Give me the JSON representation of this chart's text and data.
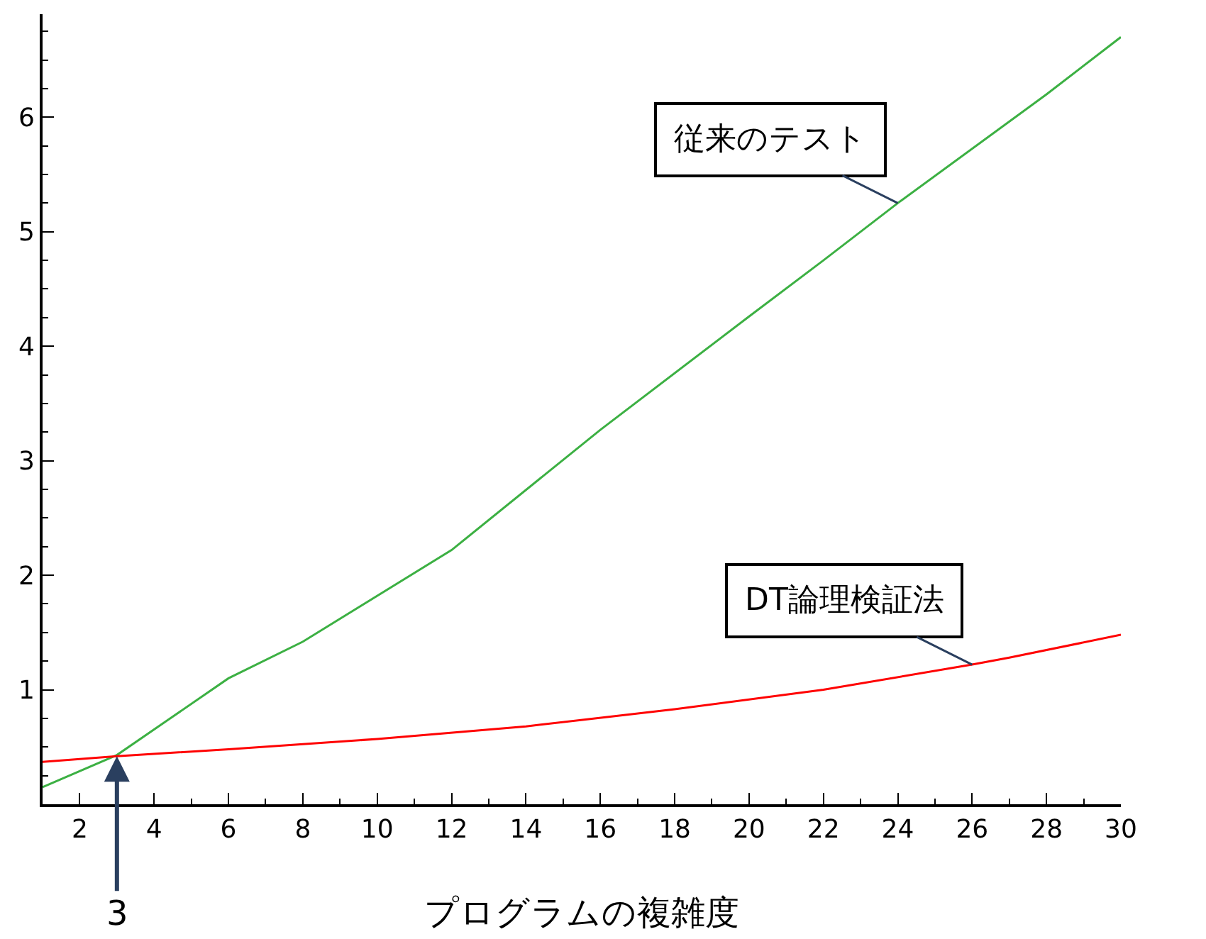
{
  "chart_data": {
    "type": "line",
    "xlabel": "プログラムの複雑度",
    "series": [
      {
        "name": "従来のテスト",
        "color": "#3cb043",
        "x": [
          1,
          3,
          6,
          8,
          12,
          16,
          20,
          22,
          24,
          28,
          30
        ],
        "values": [
          0.15,
          0.43,
          1.1,
          1.42,
          2.22,
          3.27,
          4.26,
          4.75,
          5.25,
          6.2,
          6.7
        ]
      },
      {
        "name": "DT論理検証法",
        "color": "#ff0000",
        "x": [
          1,
          3,
          6,
          10,
          14,
          18,
          22,
          26,
          27,
          30
        ],
        "values": [
          0.37,
          0.42,
          0.48,
          0.57,
          0.68,
          0.83,
          1.0,
          1.22,
          1.28,
          1.48
        ]
      }
    ],
    "annotations": [
      {
        "text": "3",
        "x": 3,
        "y": 0.42
      }
    ],
    "xlim": [
      1,
      30
    ],
    "xticks": [
      2,
      4,
      6,
      8,
      10,
      12,
      14,
      16,
      18,
      20,
      22,
      24,
      26,
      28,
      30
    ],
    "ylim": [
      0,
      6.9
    ],
    "yticks": [
      1,
      2,
      3,
      4,
      5,
      6
    ],
    "legend": false,
    "marker": "none",
    "line_style": "solid"
  }
}
